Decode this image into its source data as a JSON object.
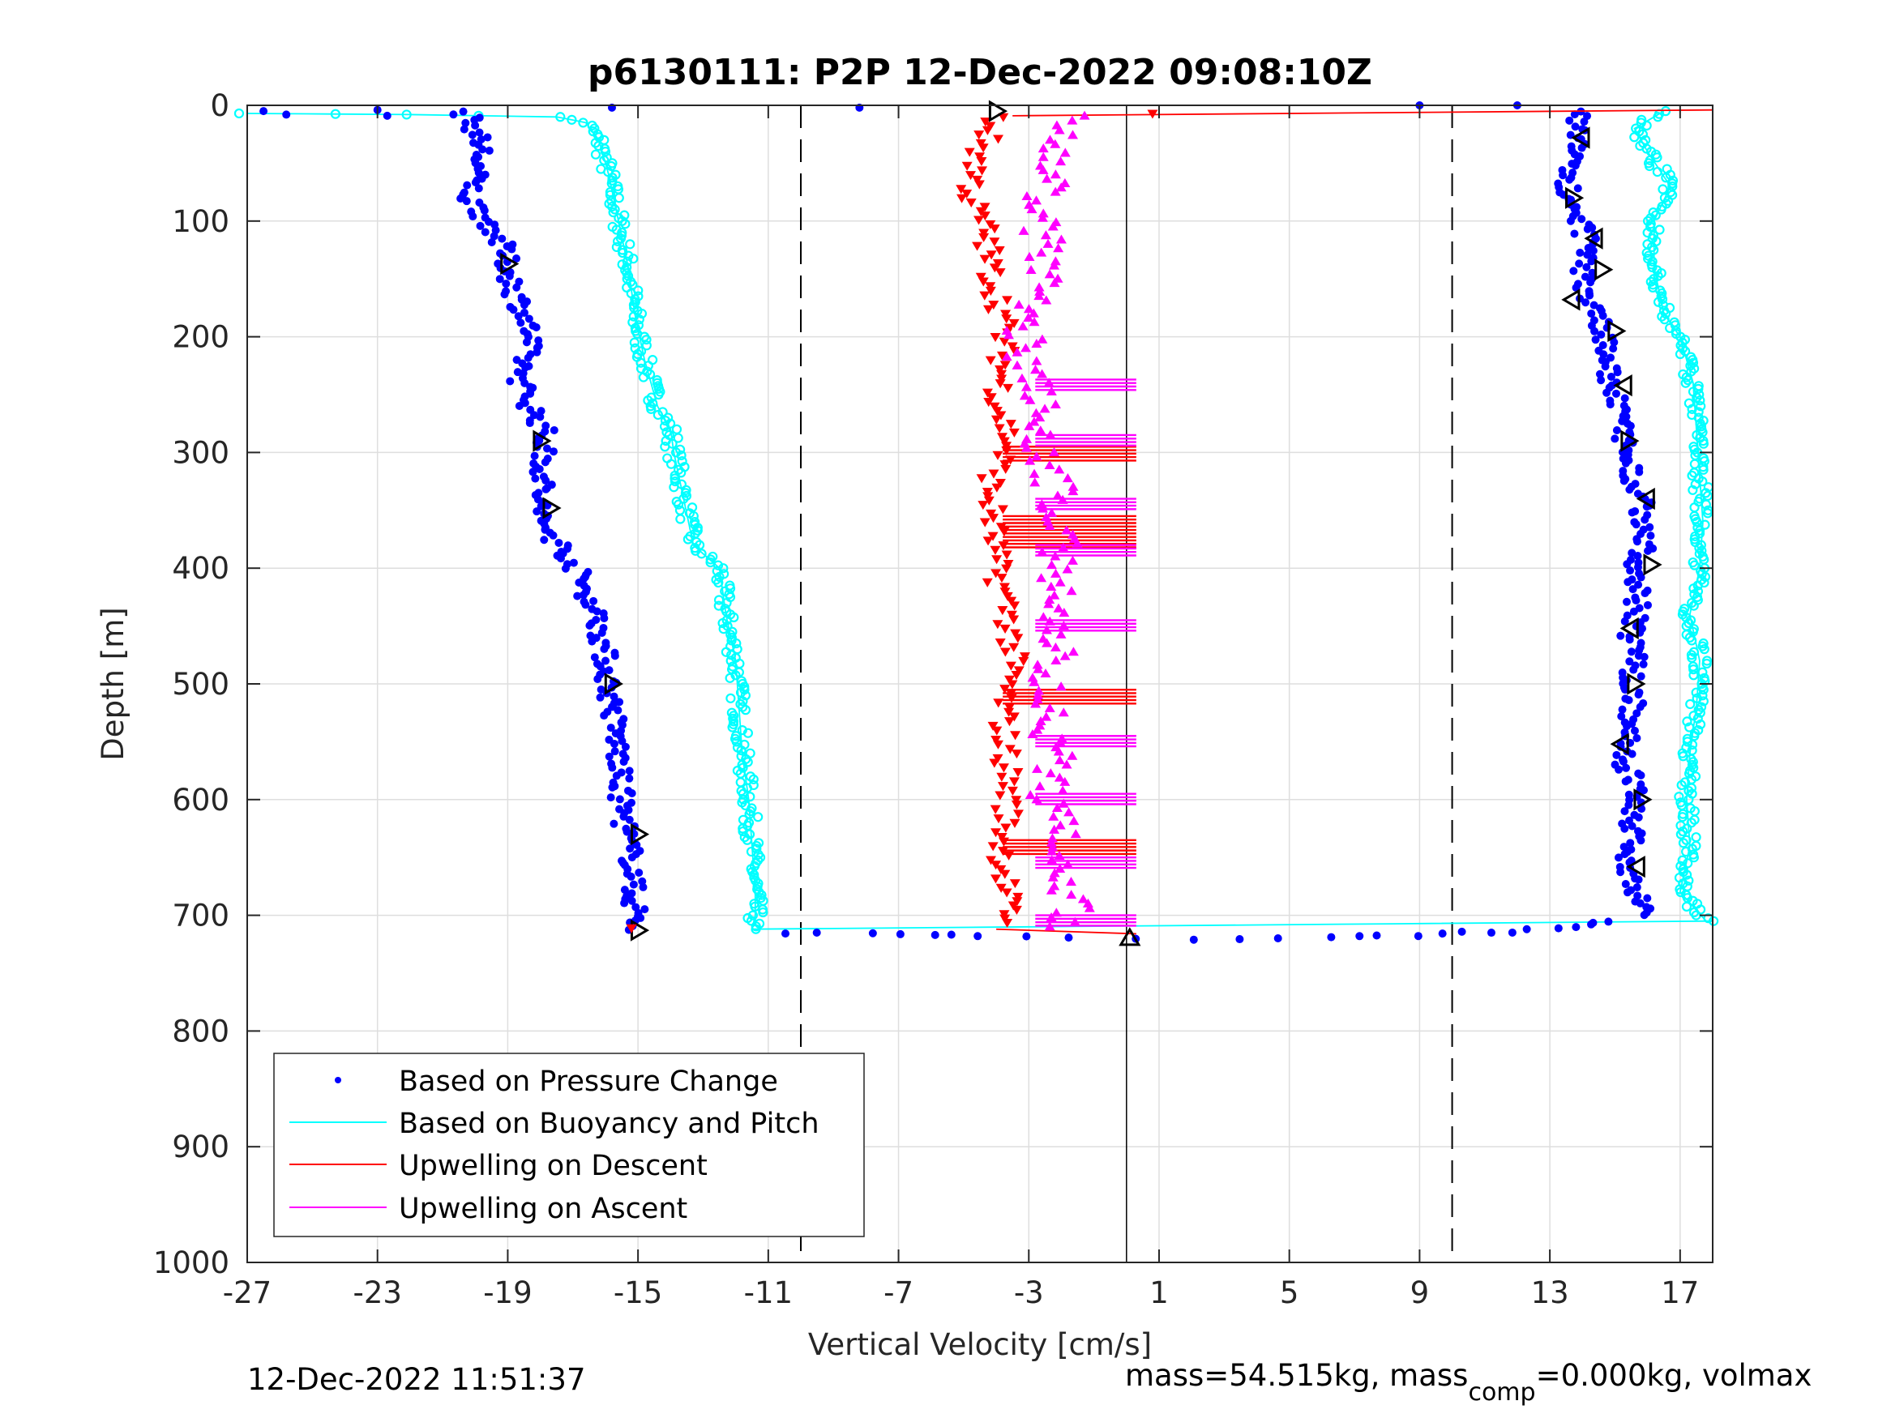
{
  "chart_data": {
    "type": "scatter",
    "title": "p6130111: P2P 12-Dec-2022 09:08:10Z",
    "xlabel": "Vertical Velocity [cm/s]",
    "ylabel": "Depth [m]",
    "xlim": [
      -27,
      18
    ],
    "ylim": [
      0,
      1000
    ],
    "y_reversed": true,
    "grid": true,
    "x_ticks": [
      -27,
      -23,
      -19,
      -15,
      -11,
      -7,
      -3,
      1,
      5,
      9,
      13,
      17
    ],
    "x_tick_labels": [
      "-27",
      "-23",
      "-19",
      "-15",
      "-11",
      "-7",
      "-3",
      "1",
      "5",
      "9",
      "13",
      "17"
    ],
    "y_ticks": [
      0,
      100,
      200,
      300,
      400,
      500,
      600,
      700,
      800,
      900,
      1000
    ],
    "y_tick_labels": [
      "0",
      "100",
      "200",
      "300",
      "400",
      "500",
      "600",
      "700",
      "800",
      "900",
      "1000"
    ],
    "reference_lines": {
      "dashed_x": [
        -10,
        10
      ],
      "solid_x": [
        0
      ]
    },
    "legend_position": "bottom-left",
    "legend": [
      {
        "label": "Based on Pressure Change",
        "color": "#0000ff",
        "marker": "dot"
      },
      {
        "label": "Based on Buoyancy and Pitch",
        "color": "#00ffff",
        "marker": "line"
      },
      {
        "label": "Upwelling on Descent",
        "color": "#ff0000",
        "marker": "line"
      },
      {
        "label": "Upwelling on Ascent",
        "color": "#ff00ff",
        "marker": "line"
      }
    ],
    "series": [
      {
        "name": "Based on Pressure Change",
        "color": "#0000ff",
        "marker": "dot",
        "segments": [
          {
            "depth": [
              5,
              10,
              20,
              40,
              60,
              80,
              100,
              120,
              140,
              160,
              180,
              200,
              220,
              240,
              260,
              280,
              300,
              320,
              340,
              360,
              380,
              400,
              420,
              440,
              460,
              480,
              500,
              520,
              540,
              560,
              580,
              600,
              620,
              640,
              660,
              680,
              700,
              712
            ],
            "velocity": [
              -20.5,
              -20.2,
              -20.0,
              -19.8,
              -20.0,
              -20.2,
              -19.6,
              -19.2,
              -19.0,
              -18.8,
              -18.5,
              -18.3,
              -18.5,
              -18.6,
              -18.3,
              -17.9,
              -17.9,
              -17.9,
              -18.0,
              -18.0,
              -17.4,
              -16.9,
              -16.6,
              -16.3,
              -16.1,
              -16.0,
              -15.9,
              -15.8,
              -15.7,
              -15.6,
              -15.6,
              -15.5,
              -15.4,
              -15.3,
              -15.1,
              -15.2,
              -15.0,
              -15.2
            ]
          },
          {
            "depth": [
              715,
              716,
              717,
              718,
              720,
              721,
              720,
              718,
              717,
              715,
              714,
              711,
              708,
              705
            ],
            "velocity": [
              -10.5,
              -8.0,
              -6.0,
              -4.5,
              -2.0,
              2.0,
              5.0,
              7.0,
              9.0,
              10.5,
              12.0,
              13.0,
              14.0,
              15.0
            ]
          },
          {
            "depth": [
              700,
              680,
              660,
              640,
              620,
              600,
              580,
              560,
              540,
              520,
              500,
              480,
              460,
              440,
              420,
              400,
              380,
              360,
              340,
              320,
              300,
              280,
              260,
              240,
              220,
              200,
              180,
              160,
              140,
              120,
              100,
              80,
              60,
              40,
              20,
              5
            ],
            "velocity": [
              15.8,
              15.6,
              15.4,
              15.5,
              15.5,
              15.6,
              15.5,
              15.2,
              15.4,
              15.6,
              15.4,
              15.6,
              15.5,
              15.6,
              15.8,
              15.6,
              15.9,
              15.8,
              15.8,
              15.5,
              15.4,
              15.3,
              15.0,
              14.9,
              14.8,
              14.6,
              14.4,
              14.0,
              14.0,
              14.2,
              13.9,
              13.6,
              13.6,
              13.7,
              13.8,
              13.9
            ]
          }
        ],
        "outliers": [
          [
            -26.5,
            5
          ],
          [
            -25.8,
            8
          ],
          [
            -23.0,
            4
          ],
          [
            -22.7,
            9
          ],
          [
            -15.8,
            2
          ],
          [
            -8.2,
            2
          ],
          [
            9.0,
            0
          ],
          [
            12.0,
            0
          ]
        ]
      },
      {
        "name": "Based on Buoyancy and Pitch",
        "color": "#00ffff",
        "marker": "line",
        "segments": [
          {
            "depth": [
              7,
              8,
              10,
              15,
              30,
              60,
              100,
              140,
              180,
              220,
              260,
              280,
              300,
              340,
              380,
              400,
              440,
              480,
              520,
              560,
              600,
              640,
              680,
              700,
              712
            ],
            "velocity": [
              -27.0,
              -22.0,
              -17.5,
              -16.6,
              -16.2,
              -15.9,
              -15.6,
              -15.3,
              -15.1,
              -14.8,
              -14.4,
              -14.0,
              -13.9,
              -13.6,
              -13.3,
              -12.5,
              -12.3,
              -12.0,
              -11.9,
              -11.8,
              -11.6,
              -11.5,
              -11.4,
              -11.4,
              -11.5
            ]
          },
          {
            "depth": [
              712,
              705
            ],
            "velocity": [
              -11.5,
              18.0
            ]
          },
          {
            "depth": [
              705,
              680,
              640,
              600,
              560,
              520,
              480,
              440,
              400,
              360,
              320,
              280,
              240,
              200,
              180,
              140,
              100,
              70,
              40,
              20,
              5
            ],
            "velocity": [
              17.8,
              17.0,
              17.3,
              17.2,
              17.3,
              17.5,
              17.6,
              17.3,
              17.6,
              17.7,
              17.6,
              17.5,
              17.4,
              17.0,
              16.5,
              16.2,
              16.2,
              16.7,
              16.0,
              15.6,
              16.5
            ]
          }
        ]
      },
      {
        "name": "Upwelling on Descent",
        "color": "#ff0000",
        "marker": "triangle-down",
        "points": [
          [
            -4.0,
            10
          ],
          [
            -4.5,
            40
          ],
          [
            -4.8,
            80
          ],
          [
            -4.3,
            110
          ],
          [
            -4.2,
            140
          ],
          [
            -3.8,
            180
          ],
          [
            -3.8,
            220
          ],
          [
            -3.9,
            260
          ],
          [
            -3.6,
            290
          ],
          [
            -4.2,
            330
          ],
          [
            -4.1,
            360
          ],
          [
            -4.0,
            400
          ],
          [
            -3.6,
            440
          ],
          [
            -3.5,
            480
          ],
          [
            -3.8,
            520
          ],
          [
            -3.7,
            560
          ],
          [
            -3.6,
            600
          ],
          [
            -3.8,
            640
          ],
          [
            -3.7,
            680
          ],
          [
            -3.6,
            710
          ],
          [
            0.8,
            7
          ]
        ]
      },
      {
        "name": "Upwelling on Ascent",
        "color": "#ff00ff",
        "marker": "triangle-up",
        "points": [
          [
            -2.0,
            710
          ],
          [
            -1.5,
            690
          ],
          [
            -2.2,
            660
          ],
          [
            -2.0,
            630
          ],
          [
            -2.5,
            600
          ],
          [
            -2.2,
            570
          ],
          [
            -2.4,
            540
          ],
          [
            -2.3,
            510
          ],
          [
            -2.3,
            480
          ],
          [
            -1.9,
            450
          ],
          [
            -2.2,
            420
          ],
          [
            -2.1,
            390
          ],
          [
            -2.0,
            360
          ],
          [
            -2.2,
            330
          ],
          [
            -2.6,
            300
          ],
          [
            -2.5,
            270
          ],
          [
            -2.8,
            240
          ],
          [
            -3.2,
            210
          ],
          [
            -3.0,
            180
          ],
          [
            -2.6,
            150
          ],
          [
            -2.5,
            120
          ],
          [
            -2.8,
            90
          ],
          [
            -2.3,
            60
          ],
          [
            -2.0,
            30
          ],
          [
            -1.5,
            5
          ]
        ]
      },
      {
        "name": "",
        "color": "#000000",
        "marker": "triangle-outline",
        "points": [
          [
            -4.0,
            5
          ],
          [
            -19.0,
            137
          ],
          [
            -18.0,
            290
          ],
          [
            -17.7,
            348
          ],
          [
            -15.8,
            500
          ],
          [
            -15.0,
            630
          ],
          [
            -15.0,
            713
          ],
          [
            14.0,
            28
          ],
          [
            13.7,
            80
          ],
          [
            14.4,
            115
          ],
          [
            14.6,
            142
          ],
          [
            13.7,
            168
          ],
          [
            15.0,
            195
          ],
          [
            15.3,
            242
          ],
          [
            15.4,
            290
          ],
          [
            16.0,
            340
          ],
          [
            16.1,
            397
          ],
          [
            15.5,
            452
          ],
          [
            15.6,
            500
          ],
          [
            15.2,
            552
          ],
          [
            15.8,
            600
          ],
          [
            15.7,
            658
          ],
          [
            0.1,
            720
          ]
        ]
      }
    ]
  },
  "footer": {
    "timestamp": "12-Dec-2022 11:51:37",
    "mass_text_prefix": "mass=54.515kg, mass",
    "mass_subscript": "comp",
    "mass_text_suffix": "=0.000kg, volmax"
  }
}
